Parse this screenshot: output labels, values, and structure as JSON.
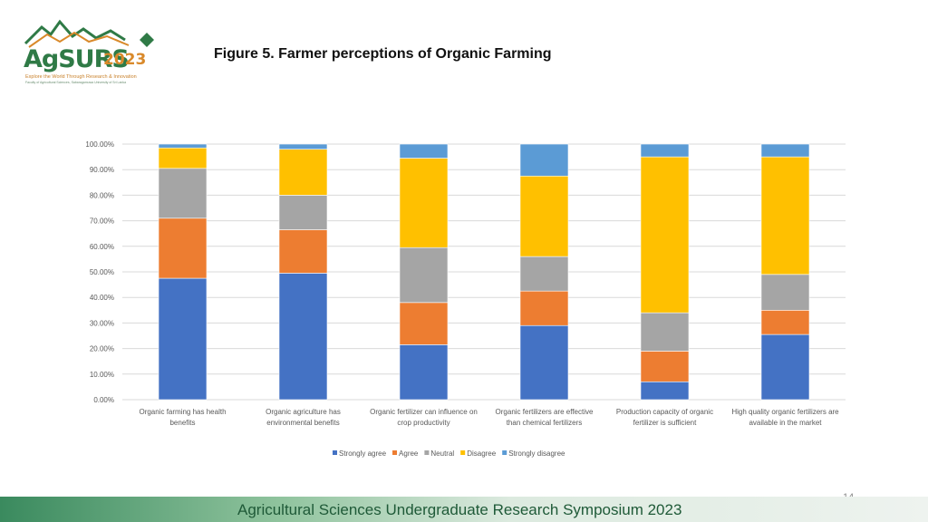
{
  "logo": {
    "name": "AgSURS",
    "year": "2023",
    "tagline": "Explore the World Through Research & Innovation",
    "subtag": "Faculty of Agricultural Sciences, Sabaragamuwa University of Sri Lanka"
  },
  "slide": {
    "title": "Figure 5. Farmer perceptions of Organic Farming",
    "page_number": "14",
    "footer": "Agricultural Sciences Undergraduate Research Symposium 2023"
  },
  "chart_data": {
    "type": "bar",
    "stacked": true,
    "categories": [
      [
        "Organic farming has health",
        "benefits"
      ],
      [
        "Organic agriculture has",
        "environmental benefits"
      ],
      [
        "Organic fertilizer can influence on",
        "crop productivity"
      ],
      [
        "Organic fertilizers are effective",
        "than chemical fertilizers"
      ],
      [
        "Production capacity of organic",
        "fertilizer is sufficient"
      ],
      [
        "High quality organic fertilizers are",
        "available in the market"
      ]
    ],
    "series": [
      {
        "name": "Strongly agree",
        "color": "#4472C4",
        "values": [
          47.5,
          49.5,
          21.5,
          29.0,
          7.0,
          25.5
        ]
      },
      {
        "name": "Agree",
        "color": "#ED7D31",
        "values": [
          23.5,
          17.0,
          16.5,
          13.5,
          12.0,
          9.5
        ]
      },
      {
        "name": "Neutral",
        "color": "#A5A5A5",
        "values": [
          19.5,
          13.5,
          21.5,
          13.5,
          15.0,
          14.0
        ]
      },
      {
        "name": "Disagree",
        "color": "#FFC000",
        "values": [
          8.0,
          18.0,
          35.0,
          31.5,
          61.0,
          46.0
        ]
      },
      {
        "name": "Strongly disagree",
        "color": "#5B9BD5",
        "values": [
          1.5,
          2.0,
          5.5,
          12.5,
          5.0,
          5.0
        ]
      }
    ],
    "ylim": [
      0,
      100
    ],
    "yticks": [
      "0.00%",
      "10.00%",
      "20.00%",
      "30.00%",
      "40.00%",
      "50.00%",
      "60.00%",
      "70.00%",
      "80.00%",
      "90.00%",
      "100.00%"
    ],
    "grid": true,
    "legend_position": "bottom"
  }
}
